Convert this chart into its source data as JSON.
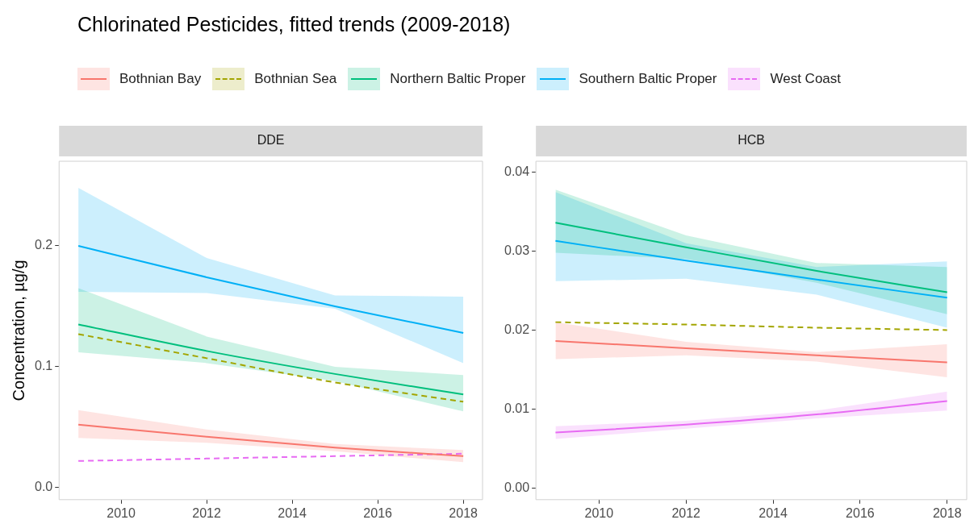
{
  "chart_data": [
    {
      "type": "line",
      "title": "Chlorinated Pesticides, fitted trends (2009-2018)",
      "subtitle": "DDE",
      "ylabel": "Concentration, µg/g",
      "legend": "top",
      "grid": false,
      "xlim": [
        2008.55,
        2018.45
      ],
      "xticks": [
        2010,
        2012,
        2014,
        2016,
        2018
      ],
      "ylim": [
        -0.01,
        0.27
      ],
      "yticks": [
        {
          "value": 0,
          "label": "0.0"
        },
        0.1,
        0.2
      ],
      "series": [
        {
          "name": "Bothnian Bay",
          "color": "#f8766d",
          "x": [
            2009,
            2012,
            2015,
            2018
          ],
          "values": [
            0.052,
            0.042,
            0.033,
            0.026
          ],
          "lower": [
            0.041,
            0.037,
            0.03,
            0.021
          ],
          "upper": [
            0.064,
            0.048,
            0.036,
            0.031
          ],
          "line_style": "solid"
        },
        {
          "name": "Bothnian Sea",
          "color": "#a3a500",
          "x": [
            2009,
            2012,
            2015,
            2018
          ],
          "values": [
            0.127,
            0.107,
            0.087,
            0.071
          ],
          "line_style": "dashed"
        },
        {
          "name": "Northern Baltic Proper",
          "color": "#00bf7d",
          "x": [
            2009,
            2012,
            2015,
            2018
          ],
          "values": [
            0.135,
            0.113,
            0.094,
            0.077
          ],
          "lower": [
            0.112,
            0.103,
            0.088,
            0.063
          ],
          "upper": [
            0.165,
            0.125,
            0.1,
            0.093
          ],
          "line_style": "solid"
        },
        {
          "name": "Southern Baltic Proper",
          "color": "#00b0f6",
          "x": [
            2009,
            2012,
            2015,
            2018
          ],
          "values": [
            0.2,
            0.174,
            0.15,
            0.128
          ],
          "lower": [
            0.162,
            0.161,
            0.148,
            0.103
          ],
          "upper": [
            0.248,
            0.19,
            0.159,
            0.158
          ],
          "line_style": "solid"
        },
        {
          "name": "West Coast",
          "color": "#e76bf3",
          "x": [
            2009,
            2012,
            2015,
            2018
          ],
          "values": [
            0.022,
            0.024,
            0.026,
            0.028
          ],
          "line_style": "dashed"
        }
      ]
    },
    {
      "type": "line",
      "subtitle": "HCB",
      "grid": false,
      "xlim": [
        2008.55,
        2018.45
      ],
      "xticks": [
        2010,
        2012,
        2014,
        2016,
        2018
      ],
      "ylim": [
        -0.0015,
        0.0414
      ],
      "yticks": [
        {
          "value": 0,
          "label": "0.00"
        },
        0.01,
        0.02,
        0.03,
        0.04
      ],
      "series": [
        {
          "color": "#f8766d",
          "x": [
            2009,
            2012,
            2015,
            2018
          ],
          "values": [
            0.0186,
            0.0177,
            0.0168,
            0.0159
          ],
          "lower": [
            0.0163,
            0.0168,
            0.016,
            0.014
          ],
          "upper": [
            0.021,
            0.0185,
            0.0172,
            0.0182
          ],
          "line_style": "solid"
        },
        {
          "color": "#a3a500",
          "x": [
            2009,
            2012,
            2015,
            2018
          ],
          "values": [
            0.021,
            0.0207,
            0.0203,
            0.02
          ],
          "line_style": "dashed"
        },
        {
          "color": "#00bf7d",
          "x": [
            2009,
            2012,
            2015,
            2018
          ],
          "values": [
            0.0336,
            0.0305,
            0.0275,
            0.0248
          ],
          "lower": [
            0.0298,
            0.029,
            0.026,
            0.022
          ],
          "upper": [
            0.0378,
            0.032,
            0.0285,
            0.028
          ],
          "line_style": "solid"
        },
        {
          "color": "#00b0f6",
          "x": [
            2009,
            2012,
            2015,
            2018
          ],
          "values": [
            0.0313,
            0.0288,
            0.0264,
            0.0241
          ],
          "lower": [
            0.0262,
            0.0265,
            0.0245,
            0.0203
          ],
          "upper": [
            0.0375,
            0.031,
            0.028,
            0.0287
          ],
          "line_style": "solid"
        },
        {
          "color": "#e76bf3",
          "x": [
            2009,
            2012,
            2015,
            2018
          ],
          "values": [
            0.007,
            0.008,
            0.0093,
            0.011
          ],
          "lower": [
            0.0062,
            0.0075,
            0.0088,
            0.0098
          ],
          "upper": [
            0.0078,
            0.0085,
            0.0098,
            0.0122
          ],
          "line_style": "solid"
        }
      ]
    }
  ]
}
